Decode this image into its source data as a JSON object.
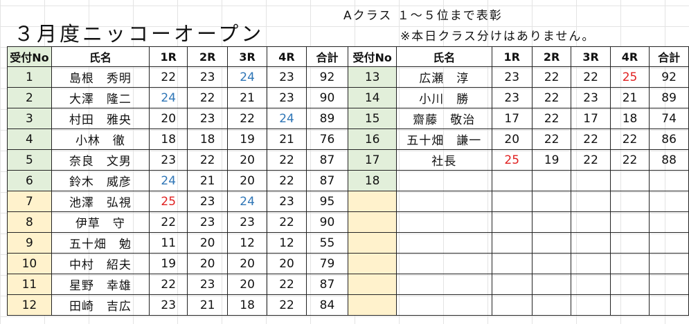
{
  "title": "３月度ニッコーオープン",
  "notes": [
    "Aクラス １～５位まで表彰",
    "※本日クラス分けはありません。"
  ],
  "colors": {
    "green_cell": "#e2efda",
    "yellow_cell": "#fff2cc",
    "best_score_blue": "#2e75b6",
    "best_score_red": "#e02020"
  },
  "headers": [
    "受付No",
    "氏名",
    "1R",
    "2R",
    "3R",
    "4R",
    "合計"
  ],
  "left_rows": [
    {
      "no": "1",
      "name": "島根　秀明",
      "r1": "22",
      "r2": "23",
      "r3": "24",
      "r4": "23",
      "total": "92"
    },
    {
      "no": "2",
      "name": "大澤　隆二",
      "r1": "24",
      "r2": "22",
      "r3": "21",
      "r4": "23",
      "total": "90"
    },
    {
      "no": "3",
      "name": "村田　雅央",
      "r1": "20",
      "r2": "23",
      "r3": "22",
      "r4": "24",
      "total": "89"
    },
    {
      "no": "4",
      "name": "小林　徹",
      "r1": "18",
      "r2": "18",
      "r3": "19",
      "r4": "21",
      "total": "76"
    },
    {
      "no": "5",
      "name": "奈良　文男",
      "r1": "23",
      "r2": "22",
      "r3": "20",
      "r4": "22",
      "total": "87"
    },
    {
      "no": "6",
      "name": "鈴木　威彦",
      "r1": "24",
      "r2": "21",
      "r3": "20",
      "r4": "22",
      "total": "87"
    },
    {
      "no": "7",
      "name": "池澤　弘視",
      "r1": "25",
      "r2": "23",
      "r3": "24",
      "r4": "23",
      "total": "95"
    },
    {
      "no": "8",
      "name": "伊草　守",
      "r1": "22",
      "r2": "23",
      "r3": "23",
      "r4": "22",
      "total": "90"
    },
    {
      "no": "9",
      "name": "五十畑　勉",
      "r1": "11",
      "r2": "20",
      "r3": "12",
      "r4": "12",
      "total": "55"
    },
    {
      "no": "10",
      "name": "中村　紹夫",
      "r1": "19",
      "r2": "20",
      "r3": "20",
      "r4": "20",
      "total": "79"
    },
    {
      "no": "11",
      "name": "星野　幸雄",
      "r1": "22",
      "r2": "23",
      "r3": "20",
      "r4": "22",
      "total": "87"
    },
    {
      "no": "12",
      "name": "田崎　吉広",
      "r1": "23",
      "r2": "21",
      "r3": "18",
      "r4": "22",
      "total": "84"
    }
  ],
  "right_rows": [
    {
      "no": "13",
      "name": "広瀬　淳",
      "r1": "23",
      "r2": "22",
      "r3": "22",
      "r4": "25",
      "total": "92"
    },
    {
      "no": "14",
      "name": "小川　勝",
      "r1": "23",
      "r2": "22",
      "r3": "23",
      "r4": "21",
      "total": "89"
    },
    {
      "no": "15",
      "name": "齋藤　敬治",
      "r1": "17",
      "r2": "22",
      "r3": "17",
      "r4": "18",
      "total": "74"
    },
    {
      "no": "16",
      "name": "五十畑　謙一",
      "r1": "20",
      "r2": "22",
      "r3": "22",
      "r4": "22",
      "total": "86"
    },
    {
      "no": "17",
      "name": "社長",
      "r1": "25",
      "r2": "19",
      "r3": "22",
      "r4": "22",
      "total": "88"
    },
    {
      "no": "18",
      "name": "",
      "r1": "",
      "r2": "",
      "r3": "",
      "r4": "",
      "total": ""
    },
    {
      "no": "",
      "name": "",
      "r1": "",
      "r2": "",
      "r3": "",
      "r4": "",
      "total": ""
    },
    {
      "no": "",
      "name": "",
      "r1": "",
      "r2": "",
      "r3": "",
      "r4": "",
      "total": ""
    },
    {
      "no": "",
      "name": "",
      "r1": "",
      "r2": "",
      "r3": "",
      "r4": "",
      "total": ""
    },
    {
      "no": "",
      "name": "",
      "r1": "",
      "r2": "",
      "r3": "",
      "r4": "",
      "total": ""
    },
    {
      "no": "",
      "name": "",
      "r1": "",
      "r2": "",
      "r3": "",
      "r4": "",
      "total": ""
    },
    {
      "no": "",
      "name": "",
      "r1": "",
      "r2": "",
      "r3": "",
      "r4": "",
      "total": ""
    }
  ],
  "highlights": {
    "left": {
      "0": {
        "r3": "blue"
      },
      "1": {
        "r1": "blue"
      },
      "2": {
        "r4": "blue"
      },
      "5": {
        "r1": "blue"
      },
      "6": {
        "r1": "red",
        "r3": "blue"
      }
    },
    "right": {
      "0": {
        "r4": "red"
      },
      "4": {
        "r1": "red"
      }
    }
  }
}
